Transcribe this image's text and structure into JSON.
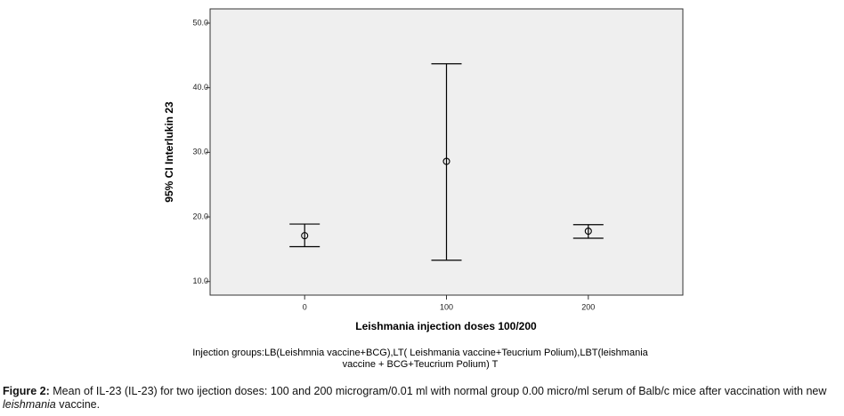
{
  "chart_data": {
    "type": "errorbar",
    "x_label": "Leishmania injection doses 100/200",
    "y_label": "95% CI Interlukin 23",
    "categories": [
      "0",
      "100",
      "200"
    ],
    "values": [
      17.1,
      28.6,
      17.8
    ],
    "lower": [
      15.4,
      13.3,
      16.7
    ],
    "upper": [
      18.9,
      43.7,
      18.8
    ],
    "color": "#000000",
    "ylim": [
      7.9,
      52.2
    ],
    "yticks": [
      {
        "value": 10,
        "label": "10.0"
      },
      {
        "value": 20,
        "label": "20.0"
      },
      {
        "value": 30,
        "label": "30.0"
      },
      {
        "value": 40,
        "label": "40.0"
      },
      {
        "value": 50,
        "label": "50.0"
      }
    ],
    "note_lines": [
      "Injection groups:LB(Leishmnia vaccine+BCG),LT( Leishmania vaccine+Teucrium Polium),LBT(leishmania",
      "vaccine + BCG+Teucrium Polium)    T"
    ]
  },
  "caption": {
    "label": "Figure 2:",
    "text": " Mean of IL-23 (IL-23) for two ijection doses: 100 and 200 microgram/0.01 ml with normal group 0.00 micro/ml serum of Balb/c mice after vaccination with new ",
    "italic": "leishmania",
    "end": " vaccine."
  }
}
